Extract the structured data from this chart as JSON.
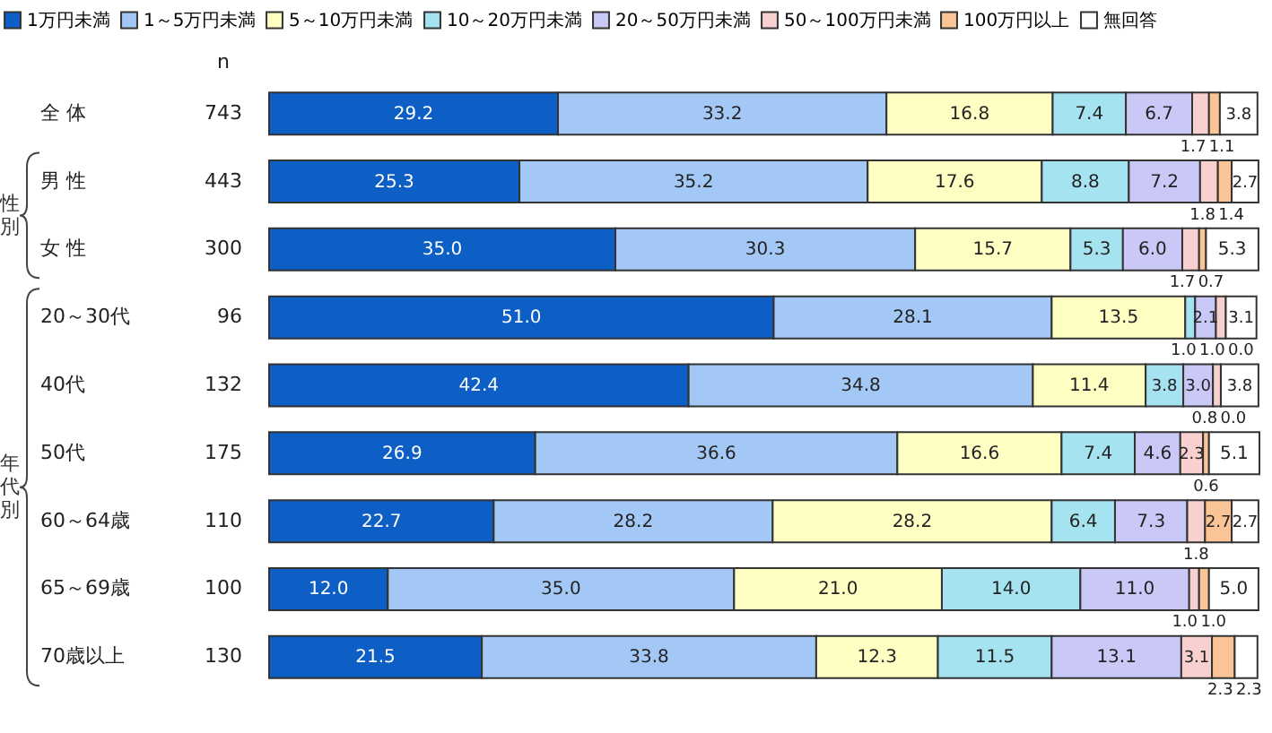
{
  "chart_data": {
    "type": "bar",
    "orientation": "horizontal",
    "stacked": true,
    "categories": [
      "全 体",
      "男 性",
      "女 性",
      "20～30代",
      "40代",
      "50代",
      "60～64歳",
      "65～69歳",
      "70歳以上"
    ],
    "series": [
      {
        "name": "1万円未満",
        "color": "#0d5fc6",
        "values": [
          29.2,
          25.3,
          35.0,
          51.0,
          42.4,
          26.9,
          22.7,
          12.0,
          21.5
        ],
        "value_labels": [
          "29.2",
          "25.3",
          "35.0",
          "51.0",
          "42.4",
          "26.9",
          "22.7",
          "12.0",
          "21.5"
        ]
      },
      {
        "name": "1～5万円未満",
        "color": "#a3c8f5",
        "values": [
          33.2,
          35.2,
          30.3,
          28.1,
          34.8,
          36.6,
          28.2,
          35.0,
          33.8
        ],
        "value_labels": [
          "33.2",
          "35.2",
          "30.3",
          "28.1",
          "34.8",
          "36.6",
          "28.2",
          "35.0",
          "33.8"
        ]
      },
      {
        "name": "5～10万円未満",
        "color": "#ffffc3",
        "values": [
          16.8,
          17.6,
          15.7,
          13.5,
          11.4,
          16.6,
          28.2,
          21.0,
          12.3
        ],
        "value_labels": [
          "16.8",
          "17.6",
          "15.7",
          "13.5",
          "11.4",
          "16.6",
          "28.2",
          "21.0",
          "12.3"
        ]
      },
      {
        "name": "10～20万円未満",
        "color": "#a6e3f0",
        "values": [
          7.4,
          8.8,
          5.3,
          1.0,
          3.8,
          7.4,
          6.4,
          14.0,
          11.5
        ],
        "value_labels": [
          "7.4",
          "8.8",
          "5.3",
          "1.0",
          "3.8",
          "7.4",
          "6.4",
          "14.0",
          "11.5"
        ]
      },
      {
        "name": "20～50万円未満",
        "color": "#c9c8f7",
        "values": [
          6.7,
          7.2,
          6.0,
          2.1,
          3.0,
          4.6,
          7.3,
          11.0,
          13.1
        ],
        "value_labels": [
          "6.7",
          "7.2",
          "6.0",
          "2.1",
          "3.0",
          "4.6",
          "7.3",
          "11.0",
          "13.1"
        ]
      },
      {
        "name": "50～100万円未満",
        "color": "#f9d0d0",
        "values": [
          1.7,
          1.8,
          1.7,
          1.0,
          0.8,
          2.3,
          1.8,
          1.0,
          3.1
        ],
        "value_labels": [
          "1.7",
          "1.8",
          "1.7",
          "1.0",
          "0.8",
          "2.3",
          "1.8",
          "1.0",
          "3.1"
        ]
      },
      {
        "name": "100万円以上",
        "color": "#fbc496",
        "values": [
          1.1,
          1.4,
          0.7,
          0.0,
          0.0,
          0.6,
          2.7,
          1.0,
          2.3
        ],
        "value_labels": [
          "1.1",
          "1.4",
          "0.7",
          "0.0",
          "0.0",
          "0.6",
          "2.7",
          "1.0",
          "2.3"
        ]
      },
      {
        "name": "無回答",
        "color": "#ffffff",
        "values": [
          3.8,
          2.7,
          5.3,
          3.1,
          3.8,
          5.1,
          2.7,
          5.0,
          2.3
        ],
        "value_labels": [
          "3.8",
          "2.7",
          "5.3",
          "3.1",
          "3.8",
          "5.1",
          "2.7",
          "5.0",
          "2.3"
        ]
      }
    ],
    "annotations": [
      "n",
      "743",
      "443",
      "300",
      "96",
      "132",
      "175",
      "110",
      "100",
      "130",
      "性別",
      "年代別"
    ],
    "legend": "top",
    "grid": false,
    "tick_labels": "y"
  }
}
